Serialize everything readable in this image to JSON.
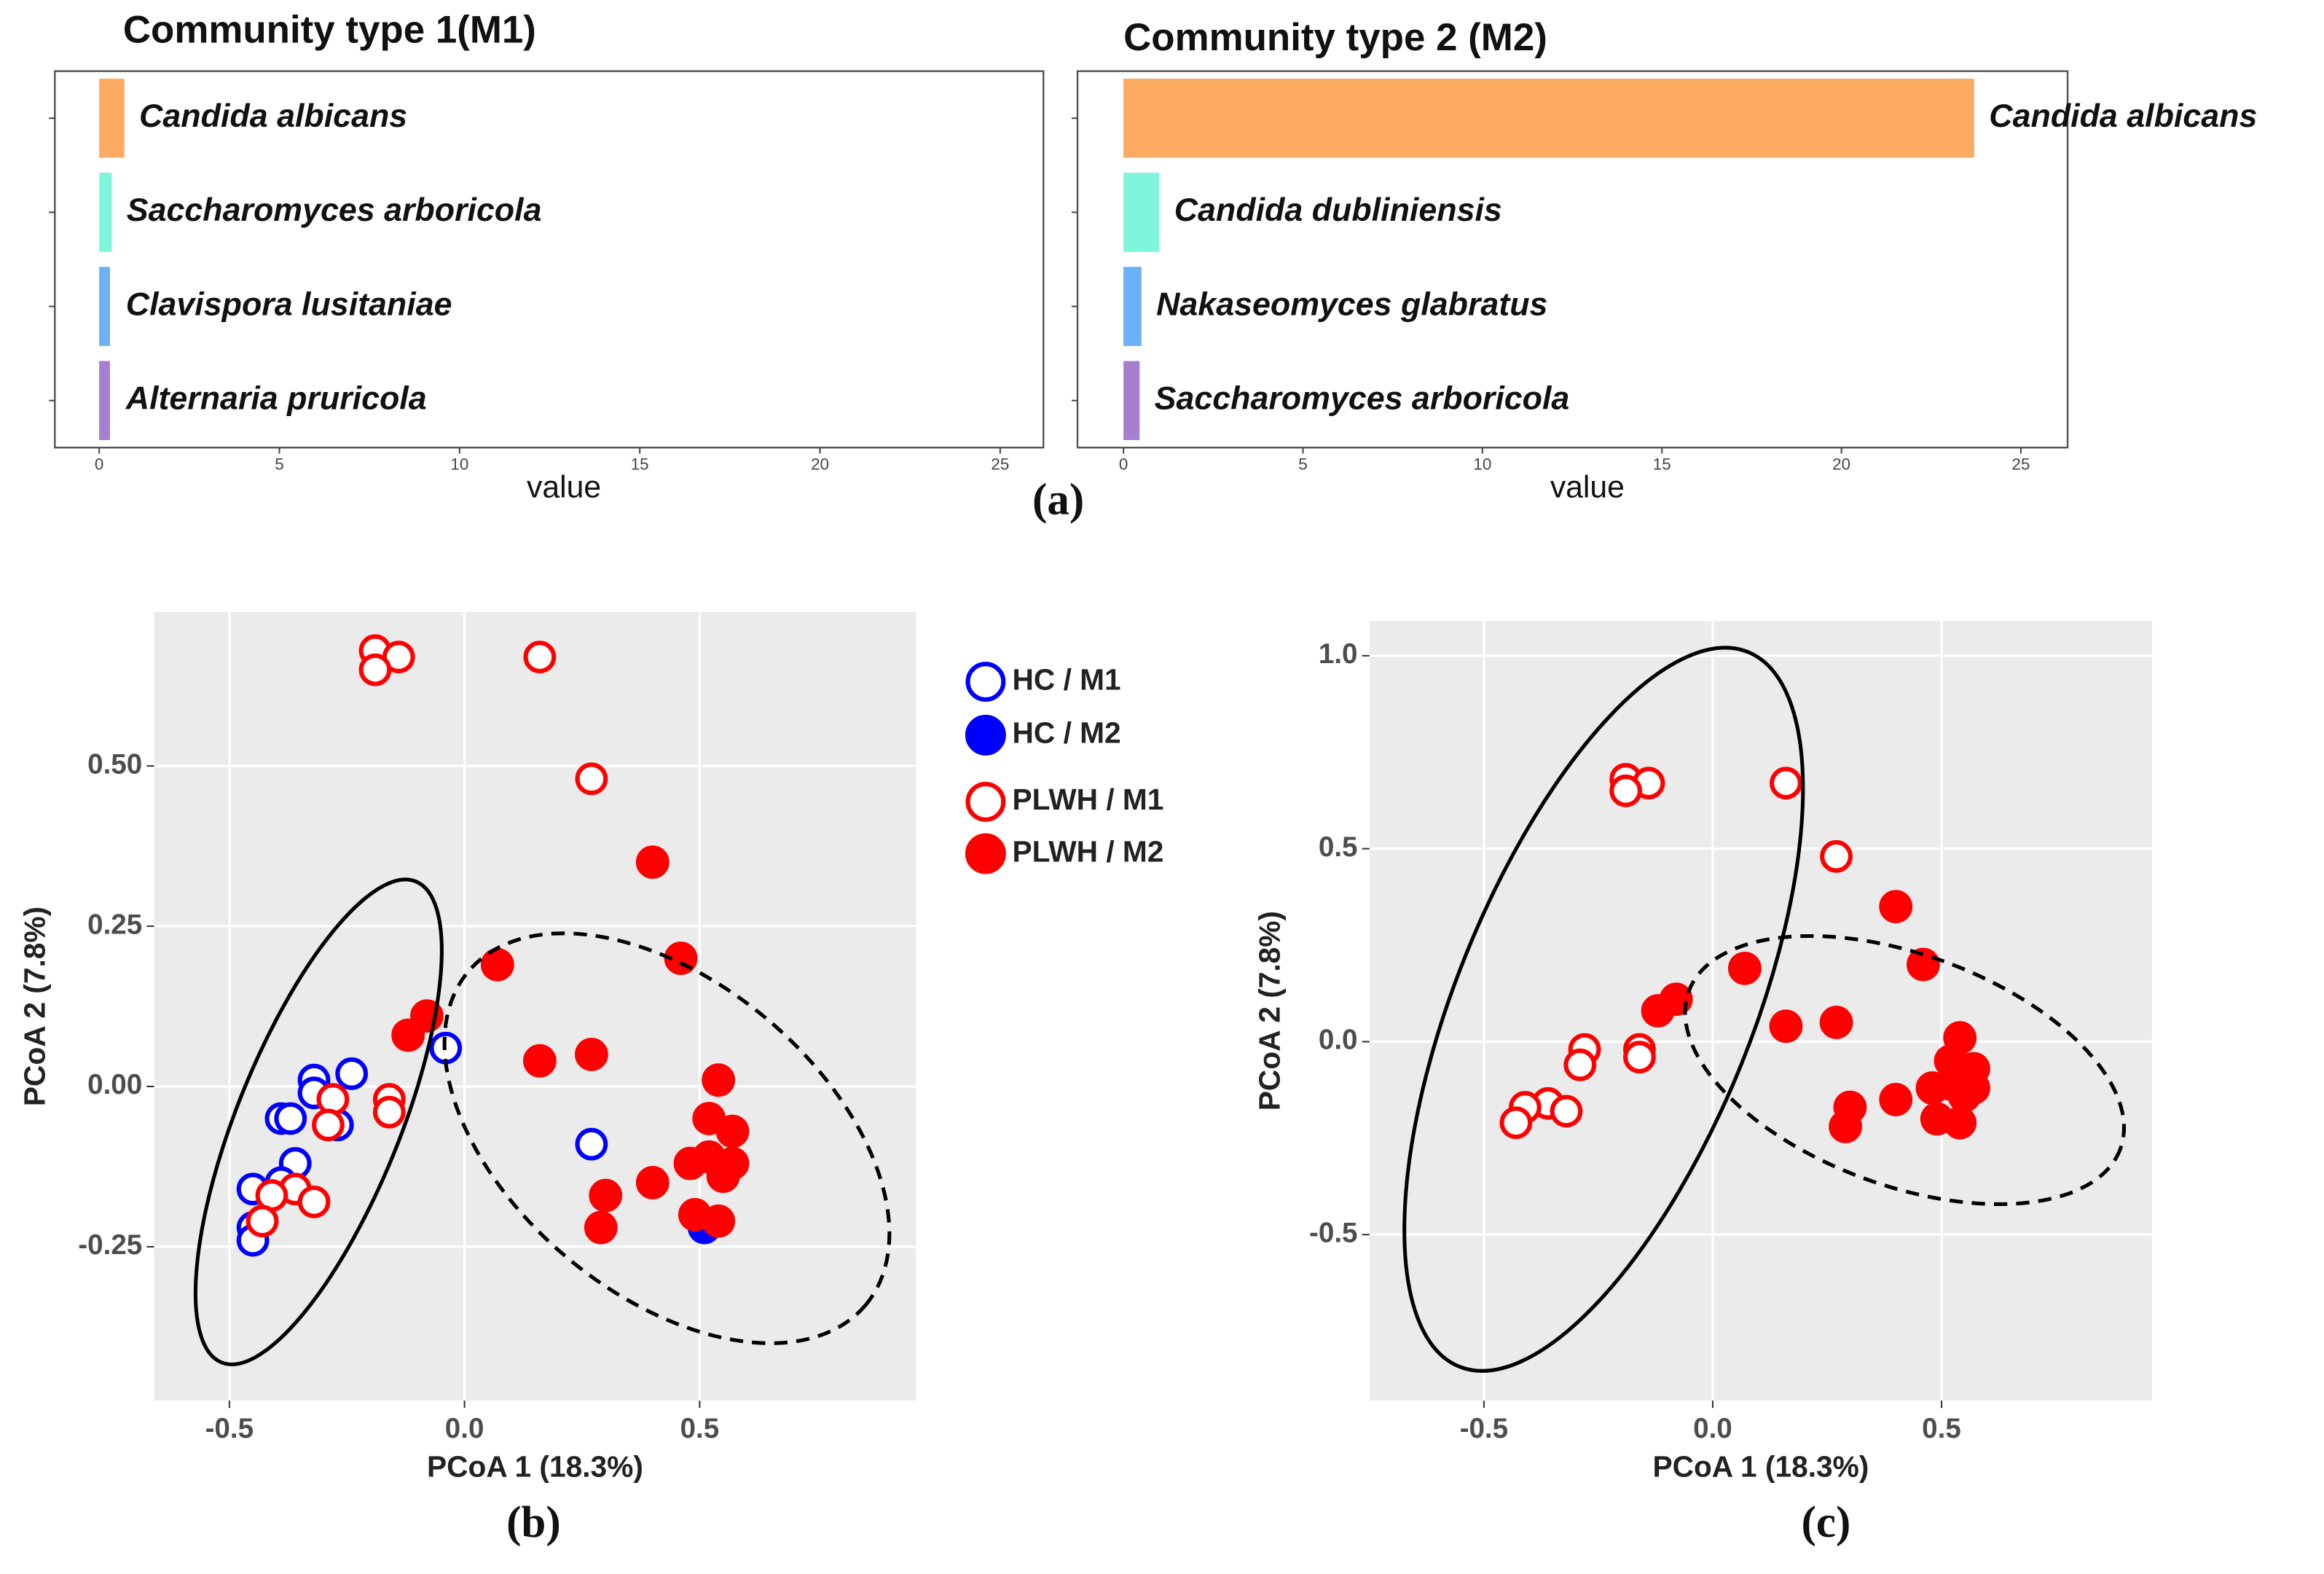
{
  "panel_labels": [
    "(a)",
    "(b)",
    "(c)"
  ],
  "chart_data": [
    {
      "type": "bar",
      "orientation": "horizontal",
      "title": "Community type 1(M1)",
      "x_label": "value",
      "categories": [
        "Candida albicans",
        "Saccharomyces arboricola",
        "Clavispora lusitaniae",
        "Alternaria pruricola"
      ],
      "values": [
        0.7,
        0.35,
        0.3,
        0.3
      ],
      "colors": [
        "#fdab62",
        "#7ff5dc",
        "#6cb0f5",
        "#a77fd1"
      ],
      "xlim": [
        -1.23,
        26.2
      ],
      "xticks": [
        0,
        5,
        10,
        15,
        20,
        25
      ],
      "grid": false
    },
    {
      "type": "bar",
      "orientation": "horizontal",
      "title": "Community type 2 (M2)",
      "x_label": "value",
      "categories": [
        "Candida albicans",
        "Candida dubliniensis",
        "Nakaseomyces glabratus",
        "Saccharomyces arboricola"
      ],
      "values": [
        23.7,
        1.0,
        0.5,
        0.45
      ],
      "colors": [
        "#fdab62",
        "#7ff5dc",
        "#6cb0f5",
        "#a77fd1"
      ],
      "xlim": [
        -1.28,
        26.3
      ],
      "xticks": [
        0,
        5,
        10,
        15,
        20,
        25
      ],
      "grid": false
    },
    {
      "type": "scatter",
      "x_label": "PCoA 1 (18.3%)",
      "y_label": "PCoA 2 (7.8%)",
      "xlim": [
        -0.66,
        0.96
      ],
      "ylim": [
        -0.49,
        0.74
      ],
      "xticks": [
        -0.5,
        {
          "value": 0,
          "label": "0.0"
        },
        0.5
      ],
      "yticks": [
        -0.25,
        {
          "value": 0,
          "label": "0.00"
        },
        0.25,
        {
          "value": 0.5,
          "label": "0.50"
        }
      ],
      "grid": true,
      "legend": "outside-right",
      "series": [
        {
          "name": "HC / M1",
          "color": "#0000ff",
          "marker": "open",
          "x": [
            -0.32,
            -0.24,
            -0.32,
            -0.27,
            -0.39,
            -0.37,
            -0.36,
            -0.45,
            -0.39,
            -0.45,
            -0.45,
            -0.04,
            0.27
          ],
          "y": [
            0.01,
            0.02,
            -0.01,
            -0.06,
            -0.05,
            -0.05,
            -0.12,
            -0.16,
            -0.15,
            -0.22,
            -0.24,
            0.06,
            -0.09
          ]
        },
        {
          "name": "HC / M2",
          "color": "#0000ff",
          "marker": "filled",
          "x": [
            0.51
          ],
          "y": [
            -0.22
          ]
        },
        {
          "name": "PLWH / M1",
          "color": "#ff0000",
          "marker": "open",
          "x": [
            -0.19,
            -0.14,
            -0.19,
            0.16,
            0.27,
            -0.16,
            -0.16,
            -0.28,
            -0.29,
            -0.36,
            -0.41,
            -0.43,
            -0.32
          ],
          "y": [
            0.68,
            0.67,
            0.65,
            0.67,
            0.48,
            -0.02,
            -0.04,
            -0.02,
            -0.06,
            -0.16,
            -0.17,
            -0.21,
            -0.18
          ]
        },
        {
          "name": "PLWH / M2",
          "color": "#ff0000",
          "marker": "filled",
          "x": [
            0.4,
            0.46,
            0.07,
            -0.08,
            -0.12,
            0.16,
            0.27,
            0.54,
            0.52,
            0.57,
            0.48,
            0.52,
            0.57,
            0.55,
            0.4,
            0.3,
            0.29,
            0.49,
            0.54
          ],
          "y": [
            0.35,
            0.2,
            0.19,
            0.11,
            0.08,
            0.04,
            0.05,
            0.01,
            -0.05,
            -0.07,
            -0.12,
            -0.11,
            -0.12,
            -0.14,
            -0.15,
            -0.17,
            -0.22,
            -0.2,
            -0.21
          ]
        }
      ]
    },
    {
      "type": "scatter",
      "x_label": "PCoA 1 (18.3%)",
      "y_label": "PCoA 2 (7.8%)",
      "xlim": [
        -0.75,
        0.96
      ],
      "ylim": [
        -0.93,
        1.09
      ],
      "xticks": [
        -0.5,
        {
          "value": 0,
          "label": "0.0"
        },
        0.5
      ],
      "yticks": [
        -0.5,
        {
          "value": 0,
          "label": "0.0"
        },
        0.5,
        {
          "value": 1,
          "label": "1.0"
        }
      ],
      "grid": true,
      "series": [
        {
          "color": "#ff0000",
          "marker": "open",
          "x": [
            -0.19,
            -0.14,
            -0.19,
            0.16,
            0.27,
            -0.16,
            -0.16,
            -0.28,
            -0.29,
            -0.36,
            -0.41,
            -0.43,
            -0.32
          ],
          "y": [
            0.68,
            0.67,
            0.65,
            0.67,
            0.48,
            -0.02,
            -0.04,
            -0.02,
            -0.06,
            -0.16,
            -0.17,
            -0.21,
            -0.18
          ]
        },
        {
          "color": "#ff0000",
          "marker": "filled",
          "x": [
            0.4,
            0.46,
            0.07,
            -0.08,
            -0.12,
            0.16,
            0.27,
            0.54,
            0.52,
            0.57,
            0.48,
            0.52,
            0.57,
            0.55,
            0.4,
            0.3,
            0.29,
            0.49,
            0.54
          ],
          "y": [
            0.35,
            0.2,
            0.19,
            0.11,
            0.08,
            0.04,
            0.05,
            0.01,
            -0.05,
            -0.07,
            -0.12,
            -0.11,
            -0.12,
            -0.14,
            -0.15,
            -0.17,
            -0.22,
            -0.2,
            -0.21
          ]
        }
      ]
    }
  ]
}
